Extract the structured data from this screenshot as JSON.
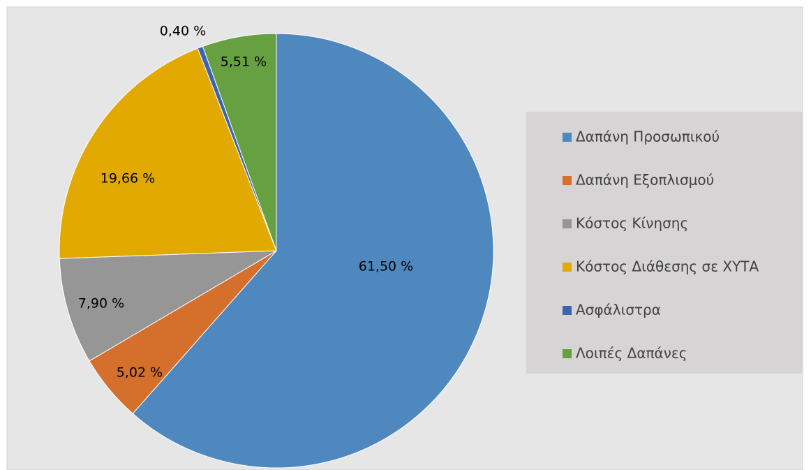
{
  "chart_data": {
    "type": "pie",
    "categories": [
      "Δαπάνη Προσωπικού",
      "Δαπάνη Εξοπλισμού",
      "Κόστος Κίνησης",
      "Κόστος Διάθεσης σε ΧΥΤΑ",
      "Ασφάλιστρα",
      "Λοιπές Δαπάνες"
    ],
    "values": [
      61.5,
      5.02,
      7.9,
      19.66,
      0.4,
      5.51
    ],
    "value_labels": [
      "61,50 %",
      "5,02 %",
      "7,90 %",
      "19,66 %",
      "0,40 %",
      "5,51 %"
    ],
    "colors": [
      "#4e88be",
      "#d46f2c",
      "#969696",
      "#e2aa00",
      "#3d64ae",
      "#66a040"
    ],
    "legend": "right"
  }
}
